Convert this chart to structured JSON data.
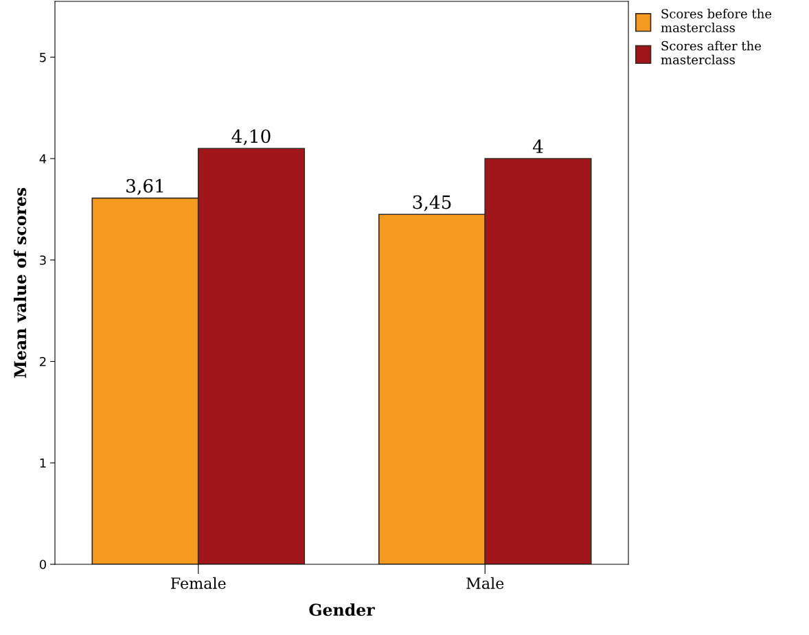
{
  "chart_data": {
    "type": "bar",
    "xlabel": "Gender",
    "ylabel": "Mean value of scores",
    "categories": [
      "Female",
      "Male"
    ],
    "series": [
      {
        "name": "Scores before the masterclass",
        "color": "#f79a20",
        "values": [
          3.61,
          3.45
        ],
        "value_labels": [
          "3,61",
          "3,45"
        ]
      },
      {
        "name": "Scores after the masterclass",
        "color": "#a0161b",
        "values": [
          4.1,
          4
        ],
        "value_labels": [
          "4,10",
          "4"
        ]
      }
    ],
    "ylim": [
      0,
      5.55
    ],
    "yticks": [
      0,
      1,
      2,
      3,
      4,
      5
    ],
    "grid": false,
    "legend": "top right"
  }
}
